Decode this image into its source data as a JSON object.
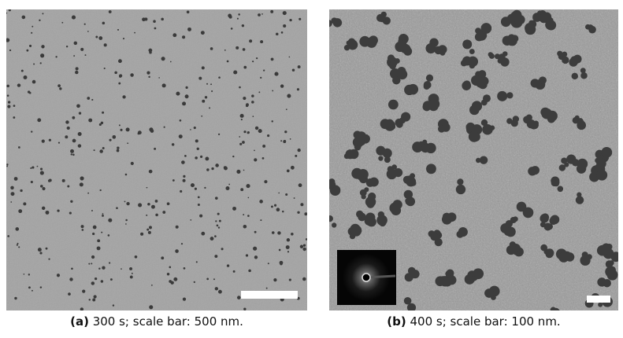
{
  "figures": [
    {
      "label": "(a)",
      "caption": "300 s; scale bar: 500 nm."
    },
    {
      "label": "(b)",
      "caption": "400 s; scale bar: 100 nm."
    }
  ]
}
